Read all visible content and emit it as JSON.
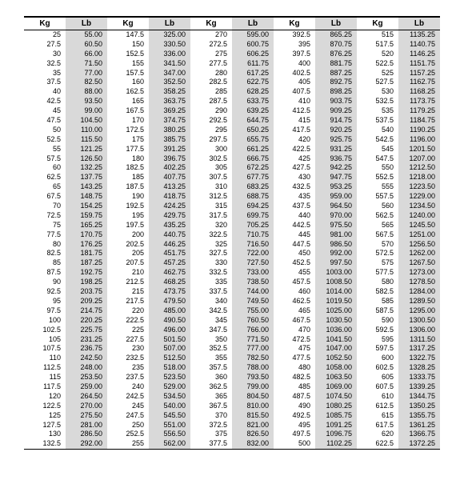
{
  "headers": {
    "kg": "Kg",
    "lb": "Lb"
  },
  "columns": [
    [
      {
        "kg": "25",
        "lb": "55.00"
      },
      {
        "kg": "27.5",
        "lb": "60.50"
      },
      {
        "kg": "30",
        "lb": "66.00"
      },
      {
        "kg": "32.5",
        "lb": "71.50"
      },
      {
        "kg": "35",
        "lb": "77.00"
      },
      {
        "kg": "37.5",
        "lb": "82.50"
      },
      {
        "kg": "40",
        "lb": "88.00"
      },
      {
        "kg": "42.5",
        "lb": "93.50"
      },
      {
        "kg": "45",
        "lb": "99.00"
      },
      {
        "kg": "47.5",
        "lb": "104.50"
      },
      {
        "kg": "50",
        "lb": "110.00"
      },
      {
        "kg": "52.5",
        "lb": "115.50"
      },
      {
        "kg": "55",
        "lb": "121.25"
      },
      {
        "kg": "57.5",
        "lb": "126.50"
      },
      {
        "kg": "60",
        "lb": "132.25"
      },
      {
        "kg": "62.5",
        "lb": "137.75"
      },
      {
        "kg": "65",
        "lb": "143.25"
      },
      {
        "kg": "67.5",
        "lb": "148.75"
      },
      {
        "kg": "70",
        "lb": "154.25"
      },
      {
        "kg": "72.5",
        "lb": "159.75"
      },
      {
        "kg": "75",
        "lb": "165.25"
      },
      {
        "kg": "77.5",
        "lb": "170.75"
      },
      {
        "kg": "80",
        "lb": "176.25"
      },
      {
        "kg": "82.5",
        "lb": "181.75"
      },
      {
        "kg": "85",
        "lb": "187.25"
      },
      {
        "kg": "87.5",
        "lb": "192.75"
      },
      {
        "kg": "90",
        "lb": "198.25"
      },
      {
        "kg": "92.5",
        "lb": "203.75"
      },
      {
        "kg": "95",
        "lb": "209.25"
      },
      {
        "kg": "97.5",
        "lb": "214.75"
      },
      {
        "kg": "100",
        "lb": "220.25"
      },
      {
        "kg": "102.5",
        "lb": "225.75"
      },
      {
        "kg": "105",
        "lb": "231.25"
      },
      {
        "kg": "107.5",
        "lb": "236.75"
      },
      {
        "kg": "110",
        "lb": "242.50"
      },
      {
        "kg": "112.5",
        "lb": "248.00"
      },
      {
        "kg": "115",
        "lb": "253.50"
      },
      {
        "kg": "117.5",
        "lb": "259.00"
      },
      {
        "kg": "120",
        "lb": "264.50"
      },
      {
        "kg": "122.5",
        "lb": "270.00"
      },
      {
        "kg": "125",
        "lb": "275.50"
      },
      {
        "kg": "127.5",
        "lb": "281.00"
      },
      {
        "kg": "130",
        "lb": "286.50"
      },
      {
        "kg": "132.5",
        "lb": "292.00"
      }
    ],
    [
      {
        "kg": "147.5",
        "lb": "325.00"
      },
      {
        "kg": "150",
        "lb": "330.50"
      },
      {
        "kg": "152.5",
        "lb": "336.00"
      },
      {
        "kg": "155",
        "lb": "341.50"
      },
      {
        "kg": "157.5",
        "lb": "347.00"
      },
      {
        "kg": "160",
        "lb": "352.50"
      },
      {
        "kg": "162.5",
        "lb": "358.25"
      },
      {
        "kg": "165",
        "lb": "363.75"
      },
      {
        "kg": "167.5",
        "lb": "369.25"
      },
      {
        "kg": "170",
        "lb": "374.75"
      },
      {
        "kg": "172.5",
        "lb": "380.25"
      },
      {
        "kg": "175",
        "lb": "385.75"
      },
      {
        "kg": "177.5",
        "lb": "391.25"
      },
      {
        "kg": "180",
        "lb": "396.75"
      },
      {
        "kg": "182.5",
        "lb": "402.25"
      },
      {
        "kg": "185",
        "lb": "407.75"
      },
      {
        "kg": "187.5",
        "lb": "413.25"
      },
      {
        "kg": "190",
        "lb": "418.75"
      },
      {
        "kg": "192.5",
        "lb": "424.25"
      },
      {
        "kg": "195",
        "lb": "429.75"
      },
      {
        "kg": "197.5",
        "lb": "435.25"
      },
      {
        "kg": "200",
        "lb": "440.75"
      },
      {
        "kg": "202.5",
        "lb": "446.25"
      },
      {
        "kg": "205",
        "lb": "451.75"
      },
      {
        "kg": "207.5",
        "lb": "457.25"
      },
      {
        "kg": "210",
        "lb": "462.75"
      },
      {
        "kg": "212.5",
        "lb": "468.25"
      },
      {
        "kg": "215",
        "lb": "473.75"
      },
      {
        "kg": "217.5",
        "lb": "479.50"
      },
      {
        "kg": "220",
        "lb": "485.00"
      },
      {
        "kg": "222.5",
        "lb": "490.50"
      },
      {
        "kg": "225",
        "lb": "496.00"
      },
      {
        "kg": "227.5",
        "lb": "501.50"
      },
      {
        "kg": "230",
        "lb": "507.00"
      },
      {
        "kg": "232.5",
        "lb": "512.50"
      },
      {
        "kg": "235",
        "lb": "518.00"
      },
      {
        "kg": "237.5",
        "lb": "523.50"
      },
      {
        "kg": "240",
        "lb": "529.00"
      },
      {
        "kg": "242.5",
        "lb": "534.50"
      },
      {
        "kg": "245",
        "lb": "540.00"
      },
      {
        "kg": "247.5",
        "lb": "545.50"
      },
      {
        "kg": "250",
        "lb": "551.00"
      },
      {
        "kg": "252.5",
        "lb": "556.50"
      },
      {
        "kg": "255",
        "lb": "562.00"
      }
    ],
    [
      {
        "kg": "270",
        "lb": "595.00"
      },
      {
        "kg": "272.5",
        "lb": "600.75"
      },
      {
        "kg": "275",
        "lb": "606.25"
      },
      {
        "kg": "277.5",
        "lb": "611.75"
      },
      {
        "kg": "280",
        "lb": "617.25"
      },
      {
        "kg": "282.5",
        "lb": "622.75"
      },
      {
        "kg": "285",
        "lb": "628.25"
      },
      {
        "kg": "287.5",
        "lb": "633.75"
      },
      {
        "kg": "290",
        "lb": "639.25"
      },
      {
        "kg": "292.5",
        "lb": "644.75"
      },
      {
        "kg": "295",
        "lb": "650.25"
      },
      {
        "kg": "297.5",
        "lb": "655.75"
      },
      {
        "kg": "300",
        "lb": "661.25"
      },
      {
        "kg": "302.5",
        "lb": "666.75"
      },
      {
        "kg": "305",
        "lb": "672.25"
      },
      {
        "kg": "307.5",
        "lb": "677.75"
      },
      {
        "kg": "310",
        "lb": "683.25"
      },
      {
        "kg": "312.5",
        "lb": "688.75"
      },
      {
        "kg": "315",
        "lb": "694.25"
      },
      {
        "kg": "317.5",
        "lb": "699.75"
      },
      {
        "kg": "320",
        "lb": "705.25"
      },
      {
        "kg": "322.5",
        "lb": "710.75"
      },
      {
        "kg": "325",
        "lb": "716.50"
      },
      {
        "kg": "327.5",
        "lb": "722.00"
      },
      {
        "kg": "330",
        "lb": "727.50"
      },
      {
        "kg": "332.5",
        "lb": "733.00"
      },
      {
        "kg": "335",
        "lb": "738.50"
      },
      {
        "kg": "337.5",
        "lb": "744.00"
      },
      {
        "kg": "340",
        "lb": "749.50"
      },
      {
        "kg": "342.5",
        "lb": "755.00"
      },
      {
        "kg": "345",
        "lb": "760.50"
      },
      {
        "kg": "347.5",
        "lb": "766.00"
      },
      {
        "kg": "350",
        "lb": "771.50"
      },
      {
        "kg": "352.5",
        "lb": "777.00"
      },
      {
        "kg": "355",
        "lb": "782.50"
      },
      {
        "kg": "357.5",
        "lb": "788.00"
      },
      {
        "kg": "360",
        "lb": "793.50"
      },
      {
        "kg": "362.5",
        "lb": "799.00"
      },
      {
        "kg": "365",
        "lb": "804.50"
      },
      {
        "kg": "367.5",
        "lb": "810.00"
      },
      {
        "kg": "370",
        "lb": "815.50"
      },
      {
        "kg": "372.5",
        "lb": "821.00"
      },
      {
        "kg": "375",
        "lb": "826.50"
      },
      {
        "kg": "377.5",
        "lb": "832.00"
      }
    ],
    [
      {
        "kg": "392.5",
        "lb": "865.25"
      },
      {
        "kg": "395",
        "lb": "870.75"
      },
      {
        "kg": "397.5",
        "lb": "876.25"
      },
      {
        "kg": "400",
        "lb": "881.75"
      },
      {
        "kg": "402.5",
        "lb": "887.25"
      },
      {
        "kg": "405",
        "lb": "892.75"
      },
      {
        "kg": "407.5",
        "lb": "898.25"
      },
      {
        "kg": "410",
        "lb": "903.75"
      },
      {
        "kg": "412.5",
        "lb": "909.25"
      },
      {
        "kg": "415",
        "lb": "914.75"
      },
      {
        "kg": "417.5",
        "lb": "920.25"
      },
      {
        "kg": "420",
        "lb": "925.75"
      },
      {
        "kg": "422.5",
        "lb": "931.25"
      },
      {
        "kg": "425",
        "lb": "936.75"
      },
      {
        "kg": "427.5",
        "lb": "942.25"
      },
      {
        "kg": "430",
        "lb": "947.75"
      },
      {
        "kg": "432.5",
        "lb": "953.25"
      },
      {
        "kg": "435",
        "lb": "959.00"
      },
      {
        "kg": "437.5",
        "lb": "964.50"
      },
      {
        "kg": "440",
        "lb": "970.00"
      },
      {
        "kg": "442.5",
        "lb": "975.50"
      },
      {
        "kg": "445",
        "lb": "981.00"
      },
      {
        "kg": "447.5",
        "lb": "986.50"
      },
      {
        "kg": "450",
        "lb": "992.00"
      },
      {
        "kg": "452.5",
        "lb": "997.50"
      },
      {
        "kg": "455",
        "lb": "1003.00"
      },
      {
        "kg": "457.5",
        "lb": "1008.50"
      },
      {
        "kg": "460",
        "lb": "1014.00"
      },
      {
        "kg": "462.5",
        "lb": "1019.50"
      },
      {
        "kg": "465",
        "lb": "1025.00"
      },
      {
        "kg": "467.5",
        "lb": "1030.50"
      },
      {
        "kg": "470",
        "lb": "1036.00"
      },
      {
        "kg": "472.5",
        "lb": "1041.50"
      },
      {
        "kg": "475",
        "lb": "1047.00"
      },
      {
        "kg": "477.5",
        "lb": "1052.50"
      },
      {
        "kg": "480",
        "lb": "1058.00"
      },
      {
        "kg": "482.5",
        "lb": "1063.50"
      },
      {
        "kg": "485",
        "lb": "1069.00"
      },
      {
        "kg": "487.5",
        "lb": "1074.50"
      },
      {
        "kg": "490",
        "lb": "1080.25"
      },
      {
        "kg": "492.5",
        "lb": "1085.75"
      },
      {
        "kg": "495",
        "lb": "1091.25"
      },
      {
        "kg": "497.5",
        "lb": "1096.75"
      },
      {
        "kg": "500",
        "lb": "1102.25"
      }
    ],
    [
      {
        "kg": "515",
        "lb": "1135.25"
      },
      {
        "kg": "517.5",
        "lb": "1140.75"
      },
      {
        "kg": "520",
        "lb": "1146.25"
      },
      {
        "kg": "522.5",
        "lb": "1151.75"
      },
      {
        "kg": "525",
        "lb": "1157.25"
      },
      {
        "kg": "527.5",
        "lb": "1162.75"
      },
      {
        "kg": "530",
        "lb": "1168.25"
      },
      {
        "kg": "532.5",
        "lb": "1173.75"
      },
      {
        "kg": "535",
        "lb": "1179.25"
      },
      {
        "kg": "537.5",
        "lb": "1184.75"
      },
      {
        "kg": "540",
        "lb": "1190.25"
      },
      {
        "kg": "542.5",
        "lb": "1196.00"
      },
      {
        "kg": "545",
        "lb": "1201.50"
      },
      {
        "kg": "547.5",
        "lb": "1207.00"
      },
      {
        "kg": "550",
        "lb": "1212.50"
      },
      {
        "kg": "552.5",
        "lb": "1218.00"
      },
      {
        "kg": "555",
        "lb": "1223.50"
      },
      {
        "kg": "557.5",
        "lb": "1229.00"
      },
      {
        "kg": "560",
        "lb": "1234.50"
      },
      {
        "kg": "562.5",
        "lb": "1240.00"
      },
      {
        "kg": "565",
        "lb": "1245.50"
      },
      {
        "kg": "567.5",
        "lb": "1251.00"
      },
      {
        "kg": "570",
        "lb": "1256.50"
      },
      {
        "kg": "572.5",
        "lb": "1262.00"
      },
      {
        "kg": "575",
        "lb": "1267.50"
      },
      {
        "kg": "577.5",
        "lb": "1273.00"
      },
      {
        "kg": "580",
        "lb": "1278.50"
      },
      {
        "kg": "582.5",
        "lb": "1284.00"
      },
      {
        "kg": "585",
        "lb": "1289.50"
      },
      {
        "kg": "587.5",
        "lb": "1295.00"
      },
      {
        "kg": "590",
        "lb": "1300.50"
      },
      {
        "kg": "592.5",
        "lb": "1306.00"
      },
      {
        "kg": "595",
        "lb": "1311.50"
      },
      {
        "kg": "597.5",
        "lb": "1317.25"
      },
      {
        "kg": "600",
        "lb": "1322.75"
      },
      {
        "kg": "602.5",
        "lb": "1328.25"
      },
      {
        "kg": "605",
        "lb": "1333.75"
      },
      {
        "kg": "607.5",
        "lb": "1339.25"
      },
      {
        "kg": "610",
        "lb": "1344.75"
      },
      {
        "kg": "612.5",
        "lb": "1350.25"
      },
      {
        "kg": "615",
        "lb": "1355.75"
      },
      {
        "kg": "617.5",
        "lb": "1361.25"
      },
      {
        "kg": "620",
        "lb": "1366.75"
      },
      {
        "kg": "622.5",
        "lb": "1372.25"
      }
    ]
  ]
}
